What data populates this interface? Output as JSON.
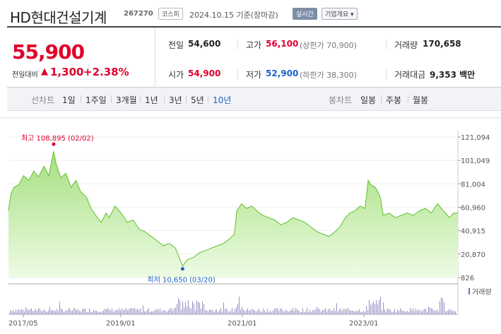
{
  "header": {
    "title": "HD현대건설기계",
    "code": "267270",
    "market": "코스피",
    "date": "2024.10.15 기준(장마감)",
    "realtime_label": "실시간",
    "overview_label": "기업개요 ▾"
  },
  "price": {
    "current": "55,900",
    "change_label": "전일대비",
    "change_arrow": "▲",
    "change_value": "1,300",
    "change_pct": "+2.38%"
  },
  "stats": {
    "prev_label": "전일",
    "prev_value": "54,600",
    "high_label": "고가",
    "high_value": "56,100",
    "upper_limit": "(상한가 70,900)",
    "volume_label": "거래량",
    "volume_value": "170,658",
    "open_label": "시가",
    "open_value": "54,900",
    "low_label": "저가",
    "low_value": "52,900",
    "lower_limit": "(하한가 38,300)",
    "amount_label": "거래대금",
    "amount_value": "9,353 백만"
  },
  "period": {
    "label": "선차트",
    "tabs": [
      "1일",
      "1주일",
      "3개월",
      "1년",
      "3년",
      "5년",
      "10년"
    ],
    "selected": "10년"
  },
  "candle": {
    "label": "봉차트",
    "tabs": [
      "일봉",
      "주봉",
      "월봉"
    ]
  },
  "chart_data": {
    "type": "area",
    "y_ticks": [
      "121,094",
      "101,049",
      "81,004",
      "60,960",
      "40,915",
      "20,870",
      "826"
    ],
    "ylim": [
      826,
      121094
    ],
    "x_ticks": [
      "2017/05",
      "2019/01",
      "2021/01",
      "2023/01"
    ],
    "max_annotation": "최고 108,895 (02/02)",
    "min_annotation": "최저 10,650 (03/20)",
    "volume_label": "거래량",
    "series": [
      {
        "values": [
          [
            2017.33,
            58000
          ],
          [
            2017.37,
            72000
          ],
          [
            2017.42,
            78000
          ],
          [
            2017.5,
            80000
          ],
          [
            2017.58,
            88000
          ],
          [
            2017.67,
            84000
          ],
          [
            2017.75,
            92000
          ],
          [
            2017.83,
            87000
          ],
          [
            2017.92,
            96000
          ],
          [
            2018.0,
            88000
          ],
          [
            2018.08,
            108895
          ],
          [
            2018.12,
            98000
          ],
          [
            2018.2,
            86000
          ],
          [
            2018.28,
            90000
          ],
          [
            2018.37,
            78000
          ],
          [
            2018.45,
            84000
          ],
          [
            2018.53,
            74000
          ],
          [
            2018.62,
            70000
          ],
          [
            2018.7,
            60000
          ],
          [
            2018.78,
            54000
          ],
          [
            2018.87,
            48000
          ],
          [
            2018.95,
            56000
          ],
          [
            2019.0,
            52000
          ],
          [
            2019.1,
            62000
          ],
          [
            2019.2,
            56000
          ],
          [
            2019.3,
            48000
          ],
          [
            2019.4,
            50000
          ],
          [
            2019.5,
            42000
          ],
          [
            2019.6,
            40000
          ],
          [
            2019.7,
            36000
          ],
          [
            2019.8,
            32000
          ],
          [
            2019.9,
            28000
          ],
          [
            2020.0,
            30000
          ],
          [
            2020.1,
            26000
          ],
          [
            2020.15,
            20000
          ],
          [
            2020.22,
            10650
          ],
          [
            2020.3,
            16000
          ],
          [
            2020.4,
            18000
          ],
          [
            2020.5,
            22000
          ],
          [
            2020.6,
            24000
          ],
          [
            2020.7,
            26000
          ],
          [
            2020.8,
            28000
          ],
          [
            2020.9,
            30000
          ],
          [
            2021.0,
            34000
          ],
          [
            2021.08,
            38000
          ],
          [
            2021.12,
            58000
          ],
          [
            2021.2,
            64000
          ],
          [
            2021.28,
            60000
          ],
          [
            2021.37,
            62000
          ],
          [
            2021.45,
            58000
          ],
          [
            2021.55,
            54000
          ],
          [
            2021.65,
            52000
          ],
          [
            2021.75,
            50000
          ],
          [
            2021.85,
            46000
          ],
          [
            2021.95,
            48000
          ],
          [
            2022.05,
            52000
          ],
          [
            2022.15,
            50000
          ],
          [
            2022.25,
            48000
          ],
          [
            2022.35,
            44000
          ],
          [
            2022.45,
            40000
          ],
          [
            2022.55,
            38000
          ],
          [
            2022.65,
            36000
          ],
          [
            2022.75,
            40000
          ],
          [
            2022.83,
            44000
          ],
          [
            2022.92,
            52000
          ],
          [
            2023.0,
            56000
          ],
          [
            2023.08,
            58000
          ],
          [
            2023.17,
            62000
          ],
          [
            2023.25,
            60000
          ],
          [
            2023.3,
            84000
          ],
          [
            2023.35,
            80000
          ],
          [
            2023.42,
            78000
          ],
          [
            2023.5,
            70000
          ],
          [
            2023.55,
            54000
          ],
          [
            2023.65,
            56000
          ],
          [
            2023.75,
            52000
          ],
          [
            2023.85,
            54000
          ],
          [
            2023.95,
            56000
          ],
          [
            2024.05,
            54000
          ],
          [
            2024.15,
            58000
          ],
          [
            2024.25,
            60000
          ],
          [
            2024.35,
            56000
          ],
          [
            2024.45,
            64000
          ],
          [
            2024.55,
            58000
          ],
          [
            2024.65,
            52000
          ],
          [
            2024.72,
            56000
          ],
          [
            2024.79,
            55900
          ]
        ]
      }
    ]
  }
}
